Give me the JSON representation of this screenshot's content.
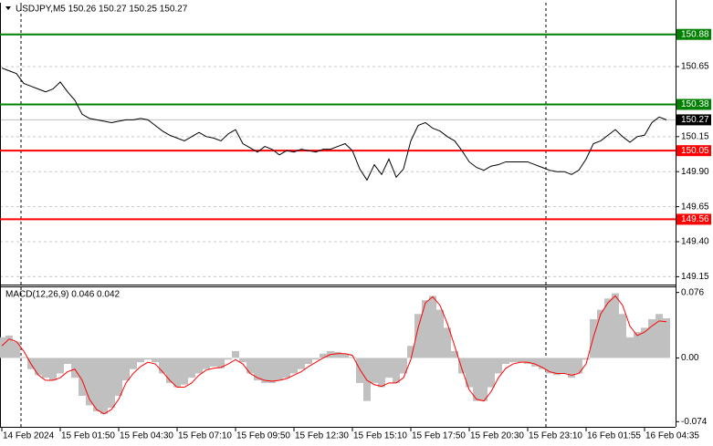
{
  "chart_data": [
    {
      "type": "line",
      "title": "USDJPY,M5  150.26 150.27 150.25 150.27",
      "categories": [
        "14 Feb 2024",
        null,
        null,
        null,
        null,
        null,
        null,
        null,
        "15 Feb 01:50",
        null,
        null,
        null,
        null,
        null,
        null,
        null,
        "15 Feb 04:30",
        null,
        null,
        null,
        null,
        null,
        null,
        null,
        "15 Feb 07:10",
        null,
        null,
        null,
        null,
        null,
        null,
        null,
        "15 Feb 09:50",
        null,
        null,
        null,
        null,
        null,
        null,
        null,
        "15 Feb 12:30",
        null,
        null,
        null,
        null,
        null,
        null,
        null,
        "15 Feb 15:10",
        null,
        null,
        null,
        null,
        null,
        null,
        null,
        "15 Feb 17:50",
        null,
        null,
        null,
        null,
        null,
        null,
        null,
        "15 Feb 20:30",
        null,
        null,
        null,
        null,
        null,
        null,
        null,
        "15 Feb 23:10",
        null,
        null,
        null,
        null,
        null,
        null,
        null,
        "16 Feb 01:55",
        null,
        null,
        null,
        null,
        null,
        null,
        null,
        "16 Feb 04:35",
        null,
        null,
        null
      ],
      "values": [
        150.64,
        150.62,
        150.6,
        150.53,
        150.51,
        150.49,
        150.47,
        150.49,
        150.54,
        150.47,
        150.41,
        150.31,
        150.28,
        150.27,
        150.26,
        150.25,
        150.26,
        150.27,
        150.27,
        150.28,
        150.27,
        150.23,
        150.19,
        150.16,
        150.14,
        150.12,
        150.15,
        150.18,
        150.15,
        150.14,
        150.12,
        150.17,
        150.2,
        150.1,
        150.07,
        150.04,
        150.08,
        150.06,
        150.02,
        150.05,
        150.04,
        150.06,
        150.05,
        150.04,
        150.06,
        150.06,
        150.08,
        150.1,
        150.05,
        149.92,
        149.84,
        149.95,
        149.88,
        149.99,
        149.86,
        149.92,
        150.12,
        150.23,
        150.25,
        150.21,
        150.19,
        150.15,
        150.12,
        150.05,
        149.97,
        149.93,
        149.91,
        149.94,
        149.95,
        149.97,
        149.97,
        149.97,
        149.97,
        149.95,
        149.93,
        149.91,
        149.9,
        149.9,
        149.88,
        149.91,
        149.99,
        150.1,
        150.12,
        150.16,
        150.2,
        150.15,
        150.11,
        150.15,
        150.16,
        150.25,
        150.29,
        150.27
      ],
      "color": "#000000",
      "ylim": [
        149.094,
        151.106
      ],
      "yticks": [
        150.65,
        150.15,
        {
          "value": 149.9,
          "label": "149.90"
        },
        149.65,
        {
          "value": 149.4,
          "label": "149.40"
        },
        149.15
      ],
      "grid": true,
      "hlines": [
        {
          "value": 150.88,
          "color": "#008000"
        },
        {
          "value": 150.38,
          "color": "#008000"
        },
        {
          "value": 150.05,
          "color": "#ff0000"
        },
        {
          "value": 149.56,
          "color": "#ff0000"
        }
      ],
      "last_price": 150.27,
      "last_price_color": "#000000",
      "last_line_color": "#c0c0c0"
    },
    {
      "type": "macd",
      "title": "MACD(12,26,9) 0.046 0.042",
      "values": [
        0.024,
        0.026,
        0.019,
        0.001,
        -0.013,
        -0.02,
        -0.023,
        -0.026,
        -0.018,
        -0.007,
        -0.023,
        -0.044,
        -0.055,
        -0.062,
        -0.065,
        -0.058,
        -0.044,
        -0.026,
        -0.013,
        -0.005,
        -0.002,
        -0.005,
        -0.018,
        -0.029,
        -0.034,
        -0.031,
        -0.023,
        -0.018,
        -0.013,
        -0.01,
        -0.012,
        -0.002,
        0.008,
        -0.005,
        -0.018,
        -0.026,
        -0.029,
        -0.029,
        -0.026,
        -0.023,
        -0.018,
        -0.013,
        -0.007,
        -0.002,
        0.005,
        0.008,
        0.007,
        0.005,
        0.001,
        -0.029,
        -0.05,
        -0.029,
        -0.034,
        -0.023,
        -0.029,
        -0.018,
        0.014,
        0.051,
        0.067,
        0.072,
        0.056,
        0.035,
        0.008,
        -0.018,
        -0.034,
        -0.05,
        -0.05,
        -0.034,
        -0.018,
        -0.007,
        -0.005,
        -0.005,
        -0.007,
        -0.01,
        -0.013,
        -0.018,
        -0.02,
        -0.018,
        -0.023,
        -0.018,
        -0.002,
        0.045,
        0.056,
        0.069,
        0.075,
        0.051,
        0.024,
        0.03,
        0.035,
        0.045,
        0.051,
        0.046
      ],
      "color": "#c0c0c0",
      "signal_values": [
        0.014,
        0.022,
        0.019,
        0.008,
        -0.007,
        -0.02,
        -0.026,
        -0.026,
        -0.023,
        -0.016,
        -0.013,
        -0.026,
        -0.048,
        -0.06,
        -0.065,
        -0.06,
        -0.048,
        -0.029,
        -0.018,
        -0.01,
        -0.005,
        -0.007,
        -0.016,
        -0.026,
        -0.034,
        -0.034,
        -0.029,
        -0.02,
        -0.014,
        -0.012,
        -0.011,
        -0.007,
        -0.002,
        -0.007,
        -0.018,
        -0.023,
        -0.026,
        -0.027,
        -0.026,
        -0.024,
        -0.02,
        -0.016,
        -0.01,
        -0.005,
        0.0,
        0.004,
        0.005,
        0.005,
        0.003,
        -0.013,
        -0.026,
        -0.031,
        -0.033,
        -0.029,
        -0.029,
        -0.023,
        -0.002,
        0.035,
        0.064,
        0.071,
        0.061,
        0.04,
        0.014,
        -0.013,
        -0.037,
        -0.048,
        -0.05,
        -0.039,
        -0.023,
        -0.012,
        -0.007,
        -0.005,
        -0.005,
        -0.007,
        -0.011,
        -0.016,
        -0.018,
        -0.018,
        -0.02,
        -0.018,
        -0.007,
        0.024,
        0.051,
        0.064,
        0.072,
        0.061,
        0.037,
        0.026,
        0.03,
        0.037,
        0.043,
        0.042
      ],
      "signal_color": "#ff0000",
      "ylim": [
        -0.08,
        0.082
      ],
      "yticks": [
        0.076,
        {
          "value": 0,
          "label": "0.00"
        },
        -0.074
      ]
    }
  ]
}
